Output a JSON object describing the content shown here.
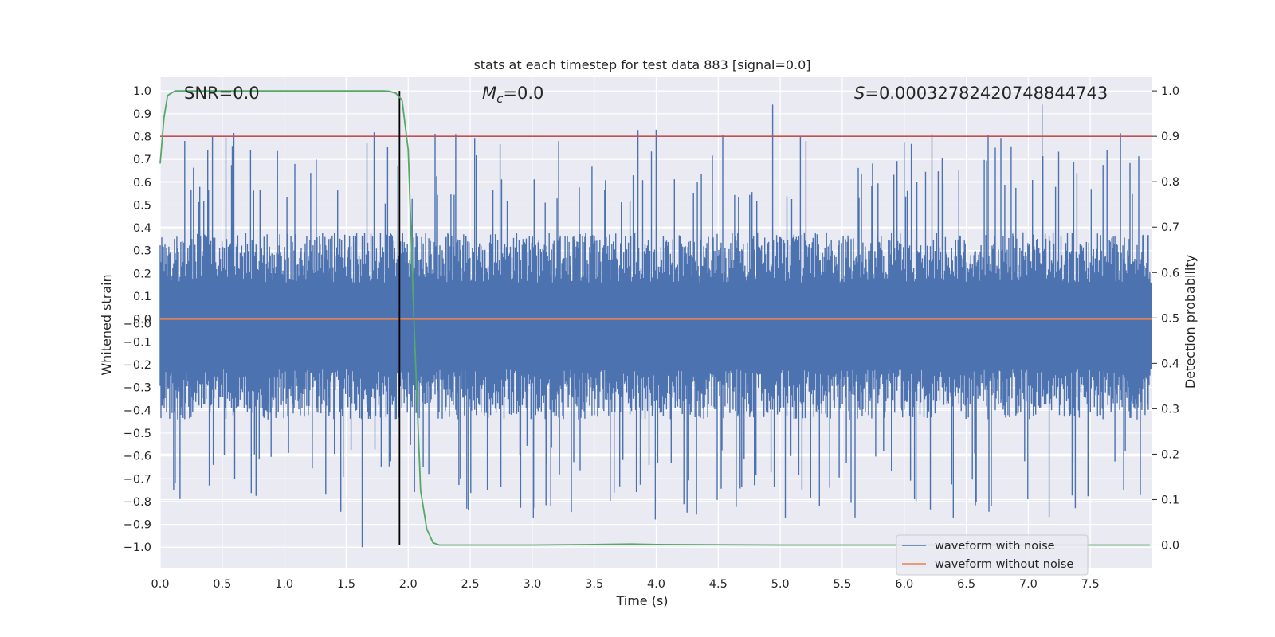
{
  "chart_data": {
    "type": "line",
    "title": "stats at each timestep for test data 883 [signal=0.0]",
    "xlabel": "Time (s)",
    "ylabel_left": "Whitened strain",
    "ylabel_right": "Detection probability",
    "xlim": [
      0.0,
      8.0
    ],
    "ylim_left": [
      -1.09,
      1.06
    ],
    "ylim_right": [
      -0.05,
      1.03
    ],
    "x_ticks": [
      "0.0",
      "0.5",
      "1.0",
      "1.5",
      "2.0",
      "2.5",
      "3.0",
      "3.5",
      "4.0",
      "4.5",
      "5.0",
      "5.5",
      "6.0",
      "6.5",
      "7.0",
      "7.5"
    ],
    "y_ticks_left": [
      "1.0",
      "0.9",
      "0.8",
      "0.7",
      "0.6",
      "0.5",
      "0.4",
      "0.3",
      "0.2",
      "0.1",
      "0.0",
      "−0.0",
      "−0.1",
      "−0.2",
      "−0.3",
      "−0.4",
      "−0.5",
      "−0.6",
      "−0.7",
      "−0.8",
      "−0.9",
      "−1.0"
    ],
    "y_ticks_right": [
      "1.0",
      "0.9",
      "0.8",
      "0.7",
      "0.6",
      "0.5",
      "0.4",
      "0.3",
      "0.2",
      "0.1",
      "0.0"
    ],
    "grid": true,
    "legend_position": "lower-right",
    "annotations": {
      "snr": "SNR=0.0",
      "mc_symbol": "M",
      "mc_sub": "c",
      "mc_value": "=0.0",
      "s_symbol": "S",
      "s_value": "=0.00032782420748844743"
    },
    "series": [
      {
        "name": "waveform with noise",
        "color": "#4c72b0",
        "axis": "left",
        "description_values": {
          "typical_band": [
            -0.22,
            0.16
          ],
          "max": 0.94,
          "min": -1.0
        }
      },
      {
        "name": "waveform without noise",
        "color": "#dd8452",
        "axis": "left",
        "x": [
          0.0,
          8.0
        ],
        "y": [
          0.0,
          0.0
        ]
      },
      {
        "axis": "right",
        "color": "#55a868",
        "x": [
          0.0,
          0.03,
          0.06,
          0.12,
          0.5,
          1.0,
          1.5,
          1.8,
          1.85,
          1.9,
          1.95,
          2.0,
          2.05,
          2.1,
          2.15,
          2.2,
          2.25,
          3.0,
          3.5,
          3.8,
          4.0,
          5.0,
          6.0,
          7.0,
          8.0
        ],
        "y": [
          0.84,
          0.94,
          0.99,
          1.0,
          1.0,
          1.0,
          1.0,
          1.0,
          0.999,
          0.995,
          0.98,
          0.87,
          0.47,
          0.12,
          0.035,
          0.005,
          0.0,
          0.0,
          0.001,
          0.002,
          0.001,
          0.0,
          0.0,
          0.0,
          0.0
        ]
      }
    ],
    "threshold_line": {
      "axis": "right",
      "value": 0.9,
      "color": "#c44e52"
    },
    "vertical_marker": {
      "x": 1.93,
      "y_range_right": [
        0.0,
        1.0
      ],
      "color": "#000000"
    }
  }
}
